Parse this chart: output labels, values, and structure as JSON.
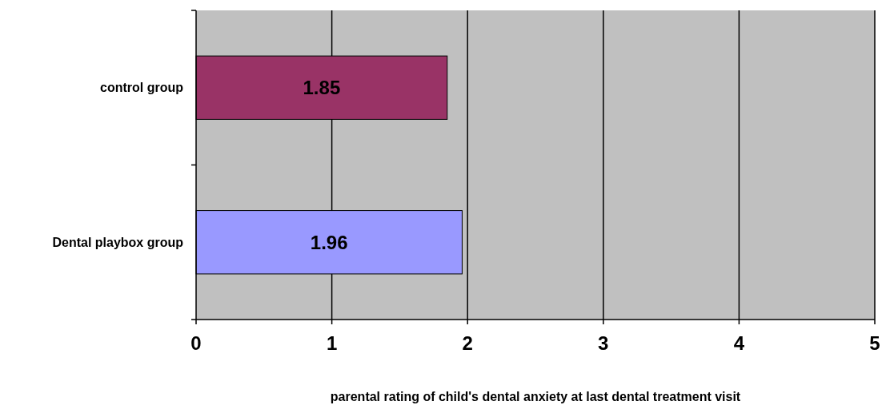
{
  "chart_data": {
    "type": "bar",
    "orientation": "horizontal",
    "categories": [
      "control group",
      "Dental playbox group"
    ],
    "values": [
      1.85,
      1.96
    ],
    "colors": [
      "#993366",
      "#9999ff"
    ],
    "xlim": [
      0,
      5
    ],
    "xticks": [
      0,
      1,
      2,
      3,
      4,
      5
    ],
    "xlabel": "parental rating of child's dental anxiety at last dental treatment visit",
    "grid": "x",
    "data_labels": true
  }
}
